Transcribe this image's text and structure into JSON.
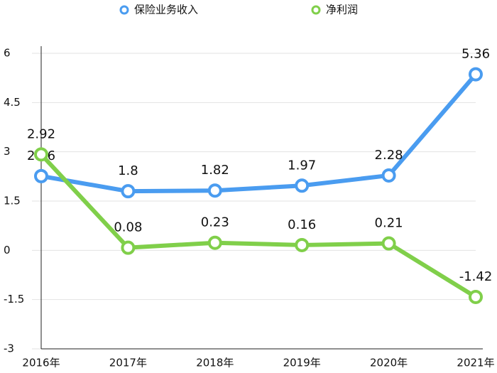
{
  "chart_data": {
    "type": "line",
    "categories": [
      "2016年",
      "2017年",
      "2018年",
      "2019年",
      "2020年",
      "2021年"
    ],
    "series": [
      {
        "name": "保险业务收入",
        "color": "#4a9cf0",
        "values": [
          2.26,
          1.8,
          1.82,
          1.97,
          2.28,
          5.36
        ]
      },
      {
        "name": "净利润",
        "color": "#80cf4a",
        "values": [
          2.92,
          0.08,
          0.23,
          0.16,
          0.21,
          -1.42
        ]
      }
    ],
    "ylim": [
      -3,
      6
    ],
    "yticks": [
      -3,
      -1.5,
      0,
      1.5,
      3,
      4.5,
      6
    ],
    "grid": true,
    "legend": "top"
  }
}
